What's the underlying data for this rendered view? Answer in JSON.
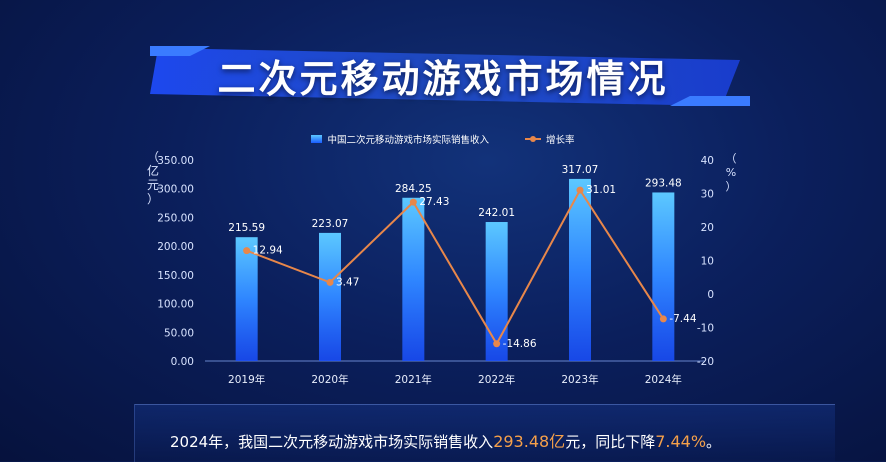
{
  "title": "二次元移动游戏市场情况",
  "unit_left": "（亿元）",
  "unit_right": "（%）",
  "legend": {
    "bar": "中国二次元移动游戏市场实际销售收入",
    "line": "增长率"
  },
  "colors": {
    "bar_top": "#5cc8ff",
    "bar_bottom": "#1a5cff",
    "line": "#e8874a",
    "highlight": "#f5a04a"
  },
  "chart_data": {
    "type": "bar",
    "categories": [
      "2019年",
      "2020年",
      "2021年",
      "2022年",
      "2023年",
      "2024年"
    ],
    "series": [
      {
        "name": "中国二次元移动游戏市场实际销售收入",
        "type": "bar",
        "axis": "left",
        "values": [
          215.59,
          223.07,
          284.25,
          242.01,
          317.07,
          293.48
        ],
        "labels": [
          "215.59",
          "223.07",
          "284.25",
          "242.01",
          "317.07",
          "293.48"
        ]
      },
      {
        "name": "增长率",
        "type": "line",
        "axis": "right",
        "values": [
          12.94,
          3.47,
          27.43,
          -14.86,
          31.01,
          -7.44
        ],
        "labels": [
          "12.94",
          "3.47",
          "27.43",
          "-14.86",
          "31.01",
          "-7.44"
        ]
      }
    ],
    "y_left": {
      "min": 0,
      "max": 350,
      "ticks": [
        "0.00",
        "50.00",
        "100.00",
        "150.00",
        "200.00",
        "250.00",
        "300.00",
        "350.00"
      ]
    },
    "y_right": {
      "min": -20,
      "max": 40,
      "ticks": [
        "-20",
        "-10",
        "0",
        "10",
        "20",
        "30",
        "40"
      ]
    }
  },
  "footer": {
    "prefix": "2024年，我国二次元移动游戏市场实际销售收入",
    "value1": "293.48亿",
    "mid": "元，同比下降",
    "value2": "7.44%",
    "suffix": "。"
  }
}
